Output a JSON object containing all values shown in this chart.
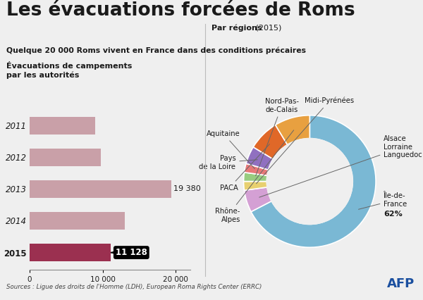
{
  "title": "Les évacuations forcées de Roms",
  "subtitle": "Quelque 20 000 Roms vivent en France dans des conditions précaires",
  "bar_section_title": "Évacuations de campements\npar les autorités",
  "pie_section_title_bold": "Par régions",
  "pie_section_title_normal": " (2015)",
  "source": "Sources : Ligue des droits de l'Homme (LDH), European Roma Rights Center (ERRC)",
  "bar_years": [
    "2011",
    "2012",
    "2013",
    "2014",
    "2015"
  ],
  "bar_values": [
    9000,
    9700,
    19380,
    13000,
    11128
  ],
  "bar_color_normal": "#c9a0a8",
  "bar_color_2015": "#9b3050",
  "bar_xlim": [
    0,
    22000
  ],
  "bar_xticks": [
    0,
    10000,
    20000
  ],
  "bar_xtick_labels": [
    "0",
    "10 000",
    "20 000"
  ],
  "pie_values": [
    62,
    5,
    2,
    2,
    2,
    4,
    7,
    8
  ],
  "pie_colors": [
    "#7ab8d4",
    "#d4a0d4",
    "#e8d070",
    "#98cc80",
    "#e87878",
    "#9070c0",
    "#e06828",
    "#e8a040"
  ],
  "pie_region_labels": [
    "Île-de-\nFrance",
    "Alsace\nLorraine\nLanguedoc",
    "Midi-Pyrénées",
    "Nord-Pas-\nde-Calais",
    "Aquitaine",
    "Pays\nde la Loire",
    "PACA",
    "Rhône-\nAlpes"
  ],
  "bg_color": "#efefef",
  "text_color": "#1a1a1a",
  "afp_color": "#1a4f9f"
}
